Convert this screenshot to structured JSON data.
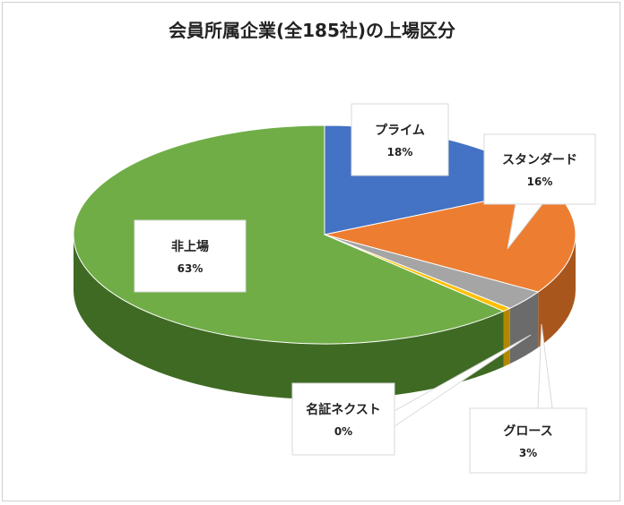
{
  "chart_data": {
    "type": "pie",
    "title": "会員所属企業(全185社)の上場区分",
    "series": [
      {
        "name": "プライム",
        "value": 18,
        "label": "18%",
        "color": "#4472C4",
        "side_color": "#2F528F"
      },
      {
        "name": "スタンダード",
        "value": 16,
        "label": "16%",
        "color": "#ED7D31",
        "side_color": "#A9561D"
      },
      {
        "name": "グロース",
        "value": 3,
        "label": "3%",
        "color": "#A5A5A5",
        "side_color": "#6B6B6B"
      },
      {
        "name": "名証ネクスト",
        "value": 0.6,
        "label": "0%",
        "color": "#FFC000",
        "side_color": "#B38600"
      },
      {
        "name": "非上場",
        "value": 63,
        "label": "63%",
        "color": "#70AD47",
        "side_color": "#3F6A23"
      }
    ]
  }
}
